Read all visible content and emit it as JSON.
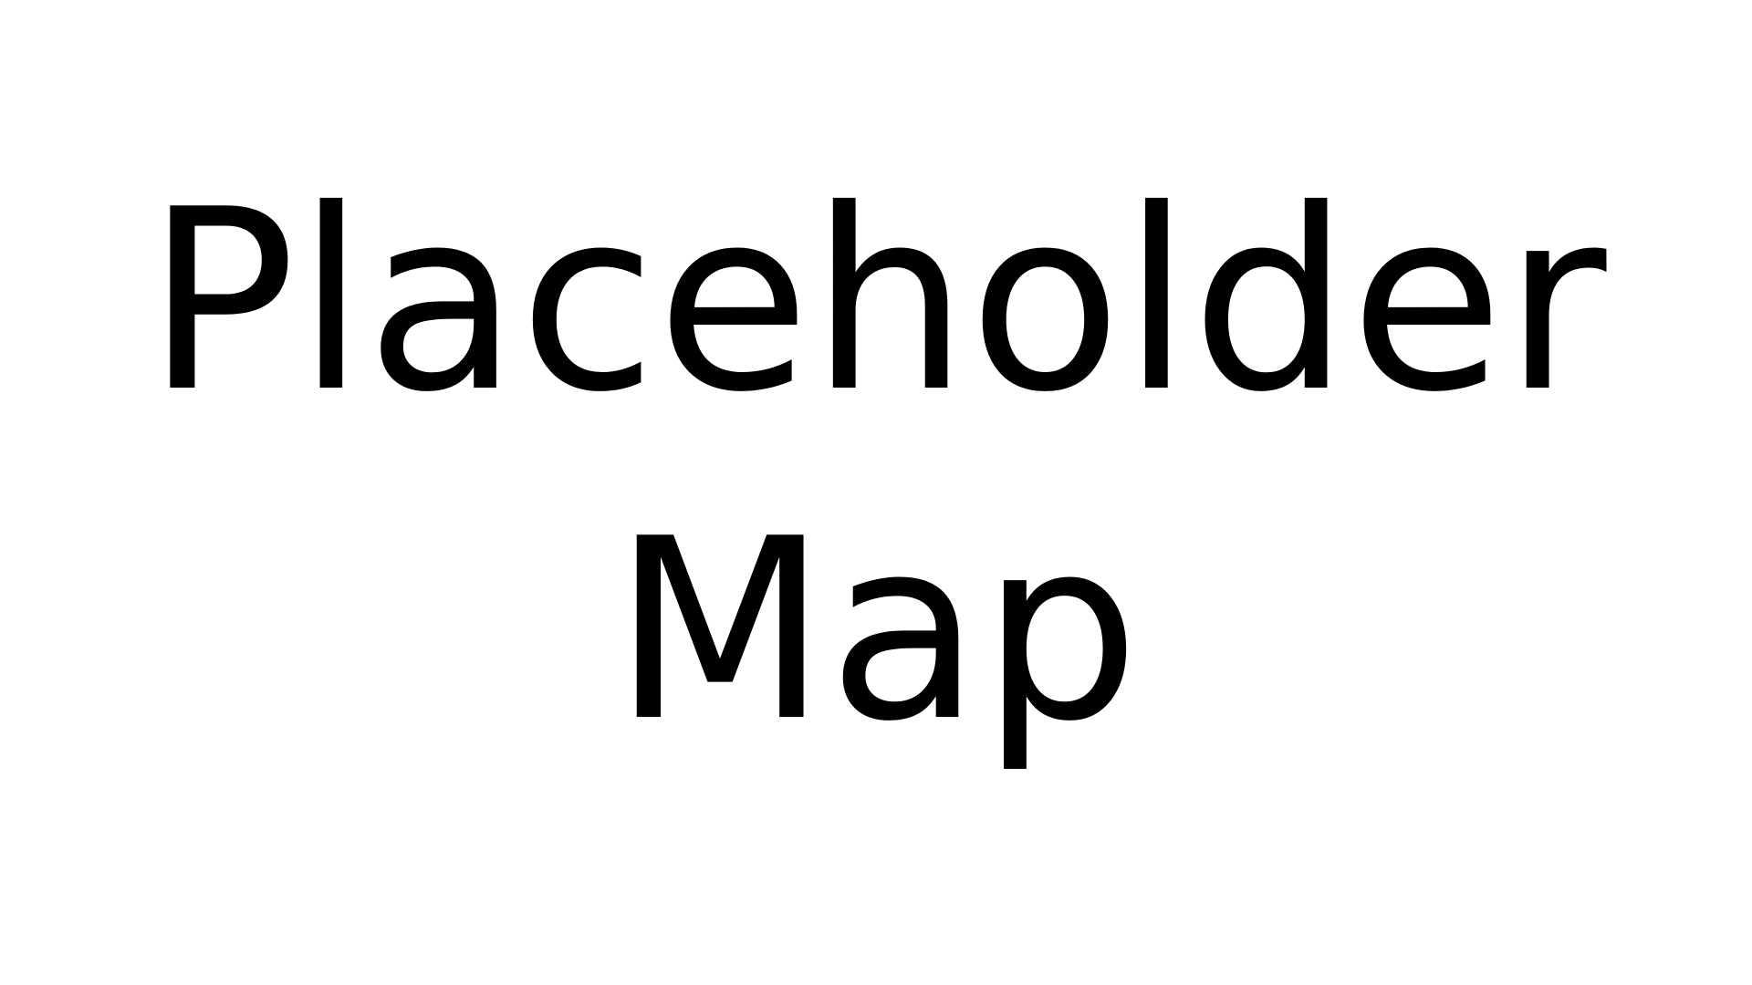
{
  "placeholder": {
    "line1": "Placeholder",
    "line2": "Map"
  },
  "colors": {
    "background": "#ffffff",
    "text": "#000000"
  }
}
